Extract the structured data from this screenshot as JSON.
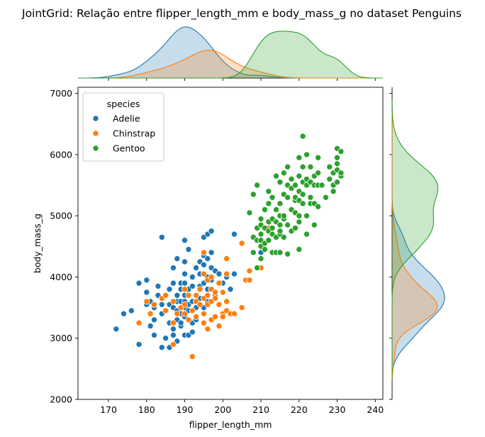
{
  "chart_data": {
    "type": "scatter",
    "title": "JointGrid: Relação entre flipper_length_mm e body_mass_g no dataset Penguins",
    "xlabel": "flipper_length_mm",
    "ylabel": "body_mass_g",
    "xlim": [
      162,
      242
    ],
    "ylim": [
      2000,
      7100
    ],
    "xticks": [
      "170",
      "180",
      "190",
      "200",
      "210",
      "220",
      "230",
      "240"
    ],
    "yticks": [
      "2000",
      "3000",
      "4000",
      "5000",
      "6000",
      "7000"
    ],
    "grid": false,
    "legend": {
      "title": "species",
      "placement": "top-left"
    },
    "marginals": {
      "type": "kde",
      "top": "flipper_length_mm",
      "right": "body_mass_g",
      "fill": true
    },
    "series": [
      {
        "name": "Adelie",
        "color": "#1f77b4",
        "points": [
          [
            172,
            3150
          ],
          [
            174,
            3400
          ],
          [
            176,
            3450
          ],
          [
            178,
            2900
          ],
          [
            178,
            3900
          ],
          [
            180,
            3550
          ],
          [
            180,
            3750
          ],
          [
            180,
            3950
          ],
          [
            181,
            3200
          ],
          [
            181,
            3600
          ],
          [
            182,
            3300
          ],
          [
            182,
            3050
          ],
          [
            182,
            3500
          ],
          [
            183,
            3700
          ],
          [
            183,
            3850
          ],
          [
            184,
            3550
          ],
          [
            184,
            3400
          ],
          [
            184,
            4650
          ],
          [
            184,
            2850
          ],
          [
            185,
            3000
          ],
          [
            185,
            3450
          ],
          [
            185,
            3700
          ],
          [
            186,
            3550
          ],
          [
            186,
            3250
          ],
          [
            186,
            3800
          ],
          [
            186,
            2850
          ],
          [
            187,
            3150
          ],
          [
            187,
            3500
          ],
          [
            187,
            4150
          ],
          [
            187,
            3900
          ],
          [
            187,
            3050
          ],
          [
            188,
            3300
          ],
          [
            188,
            3600
          ],
          [
            188,
            3700
          ],
          [
            188,
            3450
          ],
          [
            188,
            4300
          ],
          [
            188,
            2950
          ],
          [
            189,
            3600
          ],
          [
            189,
            3400
          ],
          [
            189,
            3800
          ],
          [
            189,
            3200
          ],
          [
            189,
            3900
          ],
          [
            189,
            3250
          ],
          [
            190,
            3350
          ],
          [
            190,
            3600
          ],
          [
            190,
            3700
          ],
          [
            190,
            3900
          ],
          [
            190,
            4050
          ],
          [
            190,
            3500
          ],
          [
            190,
            3050
          ],
          [
            190,
            4250
          ],
          [
            190,
            4600
          ],
          [
            191,
            3550
          ],
          [
            191,
            3800
          ],
          [
            191,
            3700
          ],
          [
            191,
            4450
          ],
          [
            191,
            3450
          ],
          [
            191,
            3050
          ],
          [
            192,
            3600
          ],
          [
            192,
            3850
          ],
          [
            192,
            3250
          ],
          [
            192,
            4000
          ],
          [
            192,
            3100
          ],
          [
            193,
            3500
          ],
          [
            193,
            3700
          ],
          [
            193,
            4150
          ],
          [
            193,
            3300
          ],
          [
            193,
            3600
          ],
          [
            194,
            3850
          ],
          [
            194,
            4050
          ],
          [
            194,
            4250
          ],
          [
            194,
            3650
          ],
          [
            195,
            3500
          ],
          [
            195,
            3900
          ],
          [
            195,
            4200
          ],
          [
            195,
            3400
          ],
          [
            195,
            4350
          ],
          [
            195,
            4650
          ],
          [
            196,
            3800
          ],
          [
            196,
            4000
          ],
          [
            196,
            4300
          ],
          [
            196,
            3600
          ],
          [
            196,
            4700
          ],
          [
            197,
            4150
          ],
          [
            197,
            4400
          ],
          [
            197,
            3950
          ],
          [
            197,
            4750
          ],
          [
            198,
            3700
          ],
          [
            198,
            4100
          ],
          [
            199,
            3900
          ],
          [
            199,
            4050
          ],
          [
            200,
            3900
          ],
          [
            201,
            4000
          ],
          [
            202,
            3800
          ],
          [
            203,
            4050
          ],
          [
            203,
            4700
          ],
          [
            210,
            4150
          ],
          [
            210,
            4400
          ]
        ]
      },
      {
        "name": "Chinstrap",
        "color": "#ff7f0e",
        "points": [
          [
            178,
            3250
          ],
          [
            180,
            3600
          ],
          [
            181,
            3400
          ],
          [
            182,
            3550
          ],
          [
            184,
            3650
          ],
          [
            185,
            3700
          ],
          [
            185,
            3450
          ],
          [
            187,
            3250
          ],
          [
            187,
            3600
          ],
          [
            187,
            2900
          ],
          [
            188,
            3400
          ],
          [
            189,
            3500
          ],
          [
            190,
            3550
          ],
          [
            190,
            3800
          ],
          [
            190,
            3400
          ],
          [
            191,
            3300
          ],
          [
            191,
            3700
          ],
          [
            192,
            3450
          ],
          [
            192,
            2700
          ],
          [
            193,
            3600
          ],
          [
            193,
            3350
          ],
          [
            193,
            3700
          ],
          [
            194,
            3550
          ],
          [
            194,
            3800
          ],
          [
            195,
            3400
          ],
          [
            195,
            3650
          ],
          [
            195,
            3250
          ],
          [
            195,
            4050
          ],
          [
            195,
            4400
          ],
          [
            196,
            3550
          ],
          [
            196,
            3950
          ],
          [
            196,
            3150
          ],
          [
            196,
            3700
          ],
          [
            197,
            3800
          ],
          [
            197,
            3300
          ],
          [
            197,
            3600
          ],
          [
            197,
            4000
          ],
          [
            198,
            3750
          ],
          [
            198,
            3350
          ],
          [
            198,
            3650
          ],
          [
            199,
            3200
          ],
          [
            199,
            3900
          ],
          [
            199,
            3550
          ],
          [
            200,
            3400
          ],
          [
            200,
            3750
          ],
          [
            200,
            3350
          ],
          [
            201,
            3450
          ],
          [
            201,
            4300
          ],
          [
            201,
            4050
          ],
          [
            201,
            3600
          ],
          [
            202,
            3400
          ],
          [
            203,
            3400
          ],
          [
            205,
            3500
          ],
          [
            205,
            4550
          ],
          [
            206,
            3950
          ],
          [
            207,
            4100
          ],
          [
            207,
            3950
          ],
          [
            210,
            4150
          ],
          [
            210,
            4500
          ],
          [
            212,
            4800
          ]
        ]
      },
      {
        "name": "Gentoo",
        "color": "#2ca02c",
        "points": [
          [
            207,
            5050
          ],
          [
            208,
            5350
          ],
          [
            208,
            4400
          ],
          [
            208,
            4650
          ],
          [
            209,
            4150
          ],
          [
            209,
            4600
          ],
          [
            209,
            4800
          ],
          [
            209,
            5500
          ],
          [
            210,
            4300
          ],
          [
            210,
            4500
          ],
          [
            210,
            4700
          ],
          [
            210,
            4850
          ],
          [
            210,
            4950
          ],
          [
            210,
            4600
          ],
          [
            210,
            4300
          ],
          [
            211,
            4550
          ],
          [
            211,
            4800
          ],
          [
            211,
            5100
          ],
          [
            211,
            4450
          ],
          [
            212,
            4750
          ],
          [
            212,
            4900
          ],
          [
            212,
            5200
          ],
          [
            212,
            4600
          ],
          [
            212,
            5400
          ],
          [
            213,
            4700
          ],
          [
            213,
            4400
          ],
          [
            213,
            4800
          ],
          [
            213,
            4950
          ],
          [
            213,
            5300
          ],
          [
            214,
            4400
          ],
          [
            214,
            4650
          ],
          [
            214,
            4900
          ],
          [
            214,
            5100
          ],
          [
            214,
            5650
          ],
          [
            215,
            4700
          ],
          [
            215,
            4750
          ],
          [
            215,
            4850
          ],
          [
            215,
            5000
          ],
          [
            215,
            5200
          ],
          [
            215,
            5550
          ],
          [
            215,
            4400
          ],
          [
            216,
            4950
          ],
          [
            216,
            5000
          ],
          [
            216,
            5350
          ],
          [
            216,
            5700
          ],
          [
            216,
            4650
          ],
          [
            217,
            4375
          ],
          [
            217,
            4850
          ],
          [
            217,
            5300
          ],
          [
            217,
            5500
          ],
          [
            217,
            5800
          ],
          [
            218,
            4750
          ],
          [
            218,
            5100
          ],
          [
            218,
            5450
          ],
          [
            218,
            5600
          ],
          [
            219,
            4800
          ],
          [
            219,
            5250
          ],
          [
            219,
            5500
          ],
          [
            219,
            5300
          ],
          [
            219,
            5050
          ],
          [
            220,
            4450
          ],
          [
            220,
            4900
          ],
          [
            220,
            5000
          ],
          [
            220,
            5400
          ],
          [
            220,
            5650
          ],
          [
            220,
            5950
          ],
          [
            220,
            5250
          ],
          [
            221,
            5200
          ],
          [
            221,
            5550
          ],
          [
            221,
            5800
          ],
          [
            221,
            6300
          ],
          [
            221,
            5350
          ],
          [
            222,
            4700
          ],
          [
            222,
            5000
          ],
          [
            222,
            5500
          ],
          [
            222,
            5600
          ],
          [
            222,
            6000
          ],
          [
            223,
            5200
          ],
          [
            223,
            5300
          ],
          [
            223,
            5550
          ],
          [
            223,
            5800
          ],
          [
            224,
            4850
          ],
          [
            224,
            5200
          ],
          [
            224,
            5500
          ],
          [
            224,
            5650
          ],
          [
            225,
            5150
          ],
          [
            225,
            5500
          ],
          [
            225,
            5700
          ],
          [
            225,
            5950
          ],
          [
            226,
            5500
          ],
          [
            227,
            5300
          ],
          [
            228,
            5600
          ],
          [
            228,
            5800
          ],
          [
            229,
            5400
          ],
          [
            229,
            5500
          ],
          [
            229,
            5700
          ],
          [
            230,
            5550
          ],
          [
            230,
            5750
          ],
          [
            230,
            5950
          ],
          [
            230,
            6100
          ],
          [
            230,
            5850
          ],
          [
            231,
            5650
          ],
          [
            231,
            6050
          ],
          [
            231,
            5700
          ]
        ]
      }
    ]
  }
}
